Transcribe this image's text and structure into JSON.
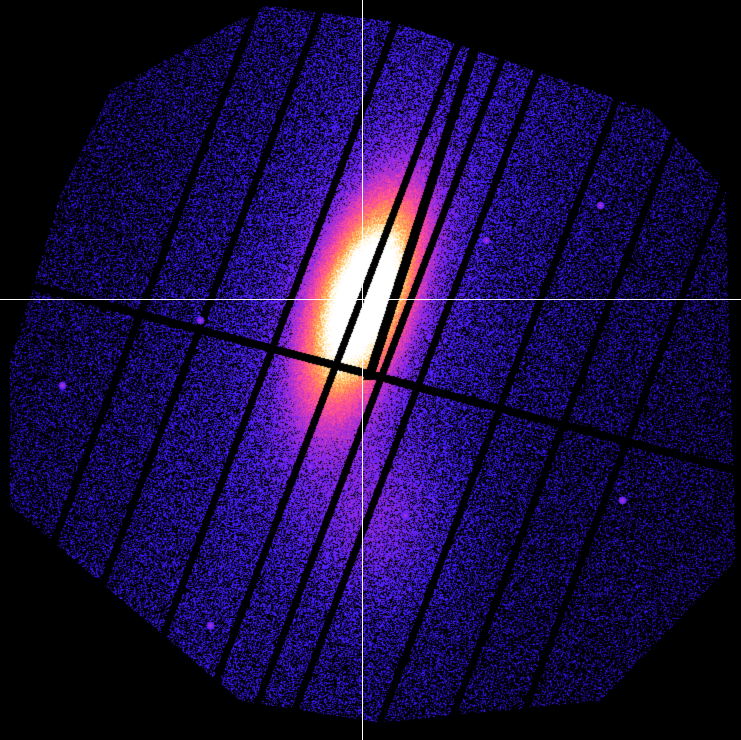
{
  "image": {
    "kind": "x-ray-ccd-mosaic",
    "colormap": [
      "#000000",
      "#1a0080",
      "#3b1cff",
      "#8a2be2",
      "#ff3d9a",
      "#ff9a3c",
      "#ffe08a",
      "#ffffff"
    ],
    "crosshair_color": "#ffffff",
    "background_color": "#000000"
  }
}
